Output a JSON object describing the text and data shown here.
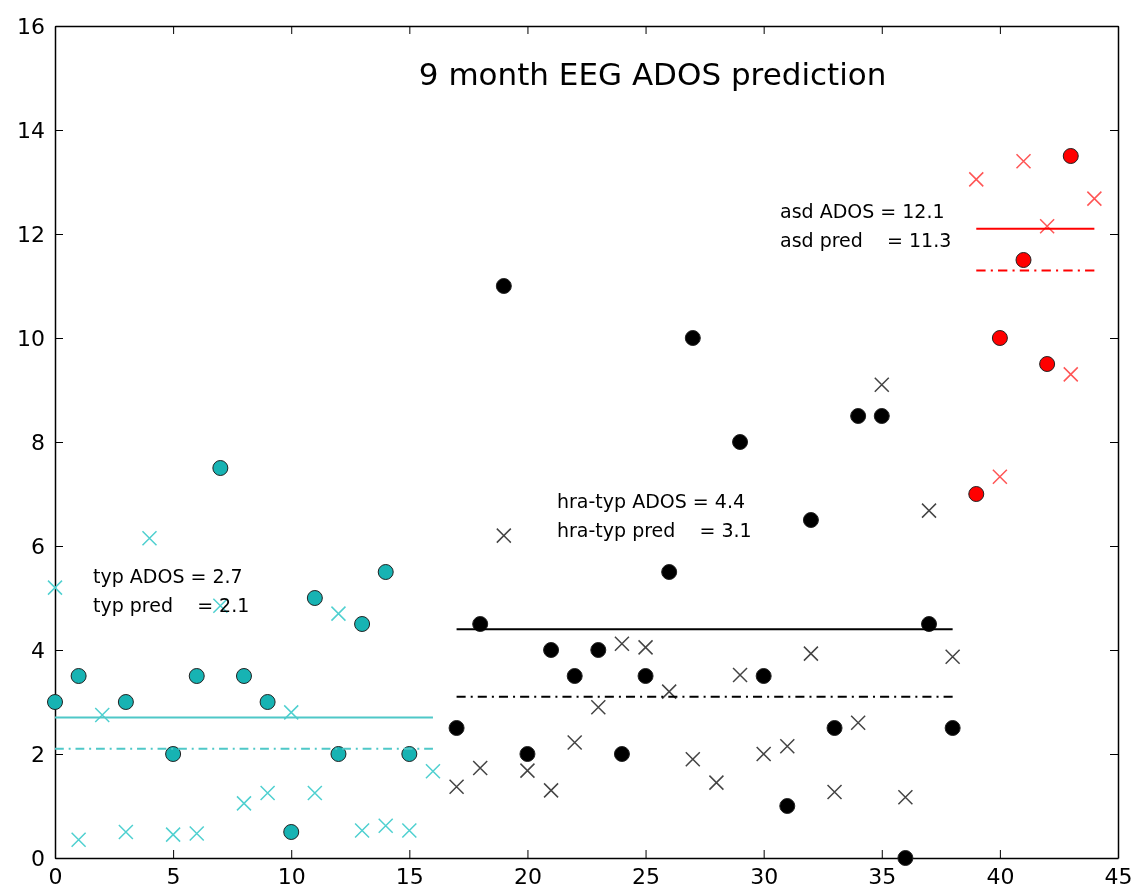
{
  "chart_data": {
    "type": "scatter",
    "title": "9 month EEG ADOS prediction",
    "xlim": [
      0,
      45
    ],
    "ylim": [
      0,
      16
    ],
    "xticks": [
      0,
      5,
      10,
      15,
      20,
      25,
      30,
      35,
      40,
      45
    ],
    "yticks": [
      0,
      2,
      4,
      6,
      8,
      10,
      12,
      14,
      16
    ],
    "grid": false,
    "series": [
      {
        "marker": "circle",
        "color": "#17b3b3",
        "x": [
          0,
          1,
          3,
          5,
          6,
          7,
          8,
          9,
          10,
          11,
          12,
          13,
          14,
          15
        ],
        "values": [
          3,
          3.5,
          3,
          2,
          3.5,
          7.5,
          3.5,
          3,
          0.5,
          5,
          2,
          4.5,
          5.5,
          2
        ]
      },
      {
        "marker": "cross",
        "color": "#4fd0d0",
        "x": [
          0,
          1,
          2,
          3,
          4,
          5,
          6,
          7,
          8,
          9,
          10,
          11,
          12,
          13,
          14,
          15,
          16
        ],
        "values": [
          5.2,
          0.35,
          2.75,
          0.5,
          6.15,
          0.45,
          0.47,
          4.85,
          1.05,
          1.25,
          2.8,
          1.25,
          4.7,
          0.53,
          0.62,
          0.53,
          1.67
        ]
      },
      {
        "marker": "circle",
        "color": "#000000",
        "x": [
          17,
          18,
          19,
          20,
          21,
          22,
          23,
          24,
          25,
          26,
          27,
          29,
          30,
          31,
          32,
          33,
          34,
          35,
          36,
          37,
          38
        ],
        "values": [
          2.5,
          4.5,
          11,
          2,
          4,
          3.5,
          4,
          2,
          3.5,
          5.5,
          10,
          8,
          3.5,
          1,
          6.5,
          2.5,
          8.5,
          8.5,
          0,
          4.5,
          2.5
        ]
      },
      {
        "marker": "cross",
        "color": "#444444",
        "x": [
          17,
          18,
          19,
          20,
          21,
          22,
          23,
          24,
          25,
          26,
          27,
          28,
          29,
          30,
          31,
          32,
          33,
          34,
          35,
          36,
          37,
          38
        ],
        "values": [
          1.37,
          1.73,
          6.2,
          1.68,
          1.3,
          2.22,
          2.9,
          4.12,
          4.05,
          3.2,
          1.9,
          1.45,
          3.52,
          2,
          2.15,
          3.93,
          1.27,
          2.6,
          9.1,
          1.17,
          6.68,
          3.87
        ]
      },
      {
        "marker": "circle",
        "color": "#ff0000",
        "x": [
          39,
          40,
          41,
          42,
          43
        ],
        "values": [
          7,
          10,
          11.5,
          9.5,
          13.5
        ]
      },
      {
        "marker": "cross",
        "color": "#ff5555",
        "x": [
          39,
          40,
          41,
          42,
          43,
          44
        ],
        "values": [
          13.05,
          7.33,
          13.4,
          12.15,
          9.3,
          12.68
        ]
      },
      {
        "type": "line",
        "line_style": "solid",
        "color": "#4fc8c8",
        "x": [
          0,
          16
        ],
        "values": [
          2.7,
          2.7
        ]
      },
      {
        "type": "line",
        "line_style": "dashed",
        "color": "#4fc8c8",
        "x": [
          0,
          16
        ],
        "values": [
          2.1,
          2.1
        ]
      },
      {
        "type": "line",
        "line_style": "solid",
        "color": "#000000",
        "x": [
          17,
          38
        ],
        "values": [
          4.4,
          4.4
        ]
      },
      {
        "type": "line",
        "line_style": "dashed",
        "color": "#000000",
        "x": [
          17,
          38
        ],
        "values": [
          3.1,
          3.1
        ]
      },
      {
        "type": "line",
        "line_style": "solid",
        "color": "#ff0000",
        "x": [
          39,
          44
        ],
        "values": [
          12.1,
          12.1
        ]
      },
      {
        "type": "line",
        "line_style": "dashed",
        "color": "#ff0000",
        "x": [
          39,
          44
        ],
        "values": [
          11.3,
          11.3
        ]
      }
    ],
    "annotations": [
      "typ ADOS = 2.7\ntyp pred    = 2.1",
      "hra-typ ADOS = 4.4\nhra-typ pred    = 3.1",
      "asd ADOS = 12.1\nasd pred    = 11.3"
    ]
  }
}
